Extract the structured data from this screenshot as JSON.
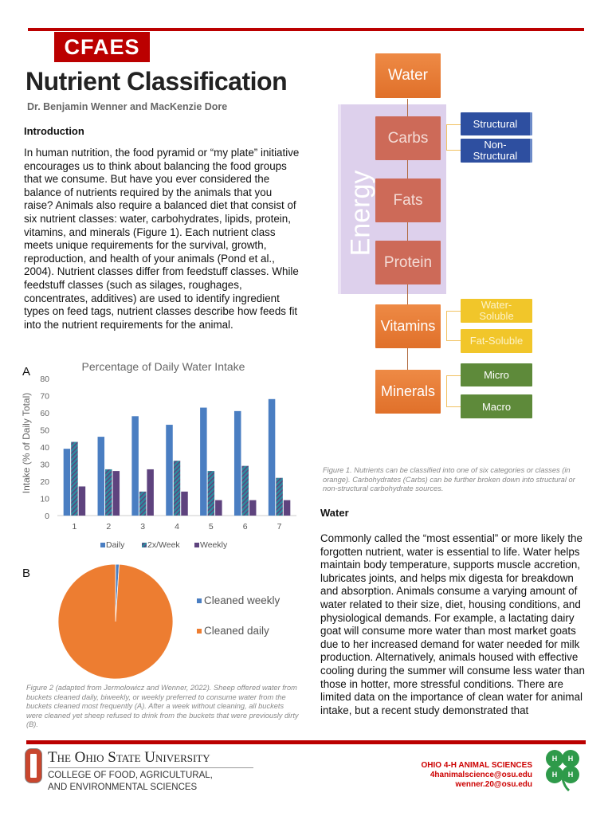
{
  "header": {
    "logo": "CFAES",
    "title": "Nutrient Classification",
    "authors": "Dr. Benjamin Wenner and MacKenzie Dore"
  },
  "intro": {
    "heading": "Introduction",
    "text": "In human nutrition, the food pyramid or “my plate” initiative encourages us to think about balancing the food groups that we consume. But have you ever considered the balance of nutrients required by the animals that you raise? Animals also require a balanced diet that consist of six nutrient classes: water, carbohydrates, lipids, protein, vitamins, and minerals (Figure 1). Each nutrient class meets unique requirements for the survival, growth, reproduction, and health of your animals (Pond et al., 2004). Nutrient classes differ from feedstuff classes. While feedstuff classes (such as silages, roughages, concentrates, additives) are used to identify ingredient types on feed tags, nutrient classes describe how feeds fit into the nutrient requirements for the animal."
  },
  "figure1": {
    "energy_label": "Energy",
    "classes": [
      "Water",
      "Carbs",
      "Fats",
      "Protein",
      "Vitamins",
      "Minerals"
    ],
    "carbs_sub": [
      "Structural",
      "Non-Structural"
    ],
    "vitamins_sub": [
      "Water-Soluble",
      "Fat-Soluble"
    ],
    "minerals_sub": [
      "Micro",
      "Macro"
    ],
    "caption": "Figure 1. Nutrients can be classified into one of six categories or classes (in orange). Carbohydrates (Carbs) can be further broken down into structural or non-structural carbohydrate sources.",
    "colors": {
      "class": "#e97b36",
      "energy": "#ddd0ec",
      "carbs": "#2e4fa0",
      "vitamins": "#f1c62a",
      "minerals": "#5e8a3a"
    }
  },
  "water": {
    "heading": "Water",
    "text": "Commonly called the “most essential” or more likely the forgotten nutrient, water is essential to life. Water helps maintain body temperature, supports muscle accretion, lubricates joints, and helps mix digesta for breakdown and absorption. Animals consume a varying amount of water related to their size, diet, housing conditions, and physiological demands. For example, a lactating dairy goat will consume more water than most market goats due to her increased demand for water needed for milk production. Alternatively, animals housed with effective cooling during the summer will consume less water than those in hotter, more stressful conditions. There are limited data on the importance of clean water for animal intake, but a recent study demonstrated that"
  },
  "chart_data": [
    {
      "panel": "A",
      "type": "bar",
      "title": "Percentage of Daily Water Intake",
      "xlabel": "",
      "ylabel": "Intake (% of Daily Total)",
      "ylim": [
        0,
        80
      ],
      "yticks": [
        0,
        10,
        20,
        30,
        40,
        50,
        60,
        70,
        80
      ],
      "grid": false,
      "legend": "bottom",
      "categories": [
        "1",
        "2",
        "3",
        "4",
        "5",
        "6",
        "7"
      ],
      "series": [
        {
          "name": "Daily",
          "color": "#4a7ec2",
          "values": [
            39,
            46,
            58,
            53,
            63,
            61,
            68
          ]
        },
        {
          "name": "2x/Week",
          "color": "#2e8a9e",
          "values": [
            43,
            27,
            14,
            32,
            26,
            29,
            22
          ]
        },
        {
          "name": "Weekly",
          "color": "#5e437e",
          "values": [
            17,
            26,
            27,
            14,
            9,
            9,
            9
          ]
        }
      ]
    },
    {
      "panel": "B",
      "type": "pie",
      "legend": "right",
      "slices": [
        {
          "name": "Cleaned weekly",
          "value": 1,
          "color": "#4a7ec2"
        },
        {
          "name": "Cleaned daily",
          "value": 99,
          "color": "#ed7d31"
        }
      ]
    }
  ],
  "figure2_caption": "Figure 2 (adapted from Jermolowicz and Wenner, 2022). Sheep offered water from buckets cleaned daily, biweekly, or weekly preferred to consume water from the buckets cleaned most frequently (A). After a week without cleaning, all buckets were cleaned yet sheep refused to drink from the buckets that were previously dirty (B).",
  "footer": {
    "osu": "The Ohio State University",
    "college1": "COLLEGE OF FOOD, AGRICULTURAL,",
    "college2": "AND ENVIRONMENTAL SCIENCES",
    "org": "OHIO 4-H ANIMAL SCIENCES",
    "email1": "4hanimalscience@osu.edu",
    "email2": "wenner.20@osu.edu"
  }
}
